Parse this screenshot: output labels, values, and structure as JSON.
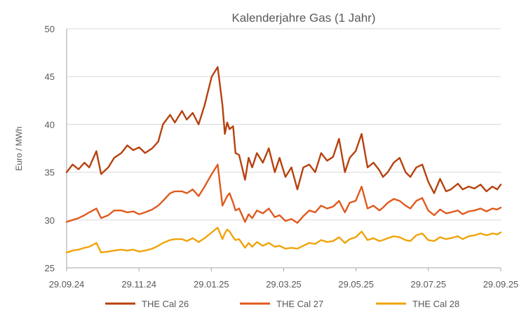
{
  "chart_data": {
    "type": "line",
    "title": "Kalenderjahre Gas (1 Jahr)",
    "ylabel": "Euro / MWh",
    "xlabel": "",
    "ylim": [
      25,
      50
    ],
    "yticks": [
      25,
      30,
      35,
      40,
      45,
      50
    ],
    "xlim": [
      "2024-09-29",
      "2025-09-29"
    ],
    "xticks": [
      "29.09.24",
      "29.11.24",
      "29.01.25",
      "29.03.25",
      "29.05.25",
      "29.07.25",
      "29.09.25"
    ],
    "grid": "horizontal",
    "legend_position": "bottom",
    "x": [
      "2024-09-29",
      "2024-10-04",
      "2024-10-09",
      "2024-10-14",
      "2024-10-18",
      "2024-10-24",
      "2024-10-28",
      "2024-11-03",
      "2024-11-08",
      "2024-11-14",
      "2024-11-19",
      "2024-11-24",
      "2024-11-29",
      "2024-12-04",
      "2024-12-10",
      "2024-12-15",
      "2024-12-19",
      "2024-12-25",
      "2024-12-29",
      "2025-01-04",
      "2025-01-08",
      "2025-01-13",
      "2025-01-18",
      "2025-01-23",
      "2025-01-29",
      "2025-02-03",
      "2025-02-07",
      "2025-02-09",
      "2025-02-11",
      "2025-02-13",
      "2025-02-16",
      "2025-02-18",
      "2025-02-21",
      "2025-02-26",
      "2025-03-01",
      "2025-03-04",
      "2025-03-08",
      "2025-03-13",
      "2025-03-18",
      "2025-03-23",
      "2025-03-27",
      "2025-04-01",
      "2025-04-06",
      "2025-04-11",
      "2025-04-16",
      "2025-04-21",
      "2025-04-26",
      "2025-05-01",
      "2025-05-06",
      "2025-05-11",
      "2025-05-16",
      "2025-05-21",
      "2025-05-25",
      "2025-05-30",
      "2025-06-04",
      "2025-06-09",
      "2025-06-14",
      "2025-06-19",
      "2025-06-22",
      "2025-06-26",
      "2025-07-01",
      "2025-07-06",
      "2025-07-11",
      "2025-07-15",
      "2025-07-20",
      "2025-07-25",
      "2025-07-30",
      "2025-08-04",
      "2025-08-09",
      "2025-08-14",
      "2025-08-18",
      "2025-08-24",
      "2025-08-28",
      "2025-09-02",
      "2025-09-07",
      "2025-09-12",
      "2025-09-17",
      "2025-09-22",
      "2025-09-26",
      "2025-09-29"
    ],
    "series": [
      {
        "name": "THE Cal 26",
        "color": "#b7410e",
        "values": [
          35.0,
          35.8,
          35.3,
          36.0,
          35.5,
          37.2,
          34.8,
          35.5,
          36.5,
          37.0,
          37.8,
          37.3,
          37.6,
          37.0,
          37.5,
          38.2,
          40.0,
          41.0,
          40.2,
          41.4,
          40.5,
          41.2,
          40.0,
          42.0,
          45.0,
          46.0,
          42.0,
          39.0,
          40.2,
          39.5,
          39.8,
          37.0,
          36.8,
          34.2,
          36.5,
          35.5,
          37.0,
          36.0,
          37.5,
          35.0,
          36.5,
          34.5,
          35.5,
          33.2,
          35.5,
          35.8,
          35.0,
          37.0,
          36.2,
          36.6,
          38.5,
          35.0,
          36.5,
          37.2,
          39.0,
          35.5,
          36.0,
          35.2,
          34.5,
          35.0,
          36.0,
          36.5,
          35.0,
          34.5,
          35.5,
          35.8,
          34.0,
          32.8,
          34.3,
          33.0,
          33.2,
          33.8,
          33.2,
          33.5,
          33.3,
          33.7,
          33.0,
          33.5,
          33.2,
          33.7
        ]
      },
      {
        "name": "THE Cal 27",
        "color": "#e05a1e",
        "values": [
          29.8,
          30.0,
          30.2,
          30.5,
          30.8,
          31.2,
          30.2,
          30.5,
          31.0,
          31.0,
          30.8,
          30.9,
          30.6,
          30.8,
          31.1,
          31.5,
          32.0,
          32.8,
          33.0,
          33.0,
          32.8,
          33.2,
          32.5,
          33.5,
          34.8,
          35.8,
          31.5,
          32.0,
          32.5,
          32.8,
          31.8,
          31.0,
          31.2,
          29.8,
          30.6,
          30.2,
          31.0,
          30.7,
          31.2,
          30.3,
          30.5,
          29.9,
          30.1,
          29.7,
          30.4,
          31.0,
          30.8,
          31.5,
          31.2,
          31.4,
          32.0,
          30.8,
          31.8,
          32.0,
          33.5,
          31.2,
          31.5,
          31.0,
          31.3,
          31.8,
          32.2,
          32.0,
          31.5,
          31.2,
          32.0,
          32.3,
          31.0,
          30.5,
          31.1,
          30.7,
          30.8,
          31.0,
          30.6,
          30.9,
          31.0,
          31.2,
          30.9,
          31.2,
          31.1,
          31.3
        ]
      },
      {
        "name": "THE Cal 28",
        "color": "#f0a30a",
        "values": [
          26.6,
          26.8,
          26.9,
          27.1,
          27.2,
          27.6,
          26.6,
          26.7,
          26.8,
          26.9,
          26.8,
          26.9,
          26.7,
          26.8,
          27.0,
          27.3,
          27.6,
          27.9,
          28.0,
          28.0,
          27.8,
          28.1,
          27.7,
          28.1,
          28.7,
          29.2,
          28.0,
          28.6,
          29.0,
          28.8,
          28.2,
          27.9,
          28.0,
          27.1,
          27.6,
          27.2,
          27.7,
          27.3,
          27.6,
          27.2,
          27.3,
          27.0,
          27.1,
          27.0,
          27.3,
          27.6,
          27.5,
          27.9,
          27.7,
          27.8,
          28.2,
          27.6,
          28.0,
          28.2,
          28.8,
          27.9,
          28.1,
          27.8,
          27.9,
          28.1,
          28.3,
          28.2,
          27.9,
          27.8,
          28.4,
          28.6,
          27.9,
          27.8,
          28.2,
          28.0,
          28.1,
          28.3,
          28.0,
          28.3,
          28.4,
          28.6,
          28.4,
          28.6,
          28.5,
          28.7
        ]
      }
    ]
  }
}
